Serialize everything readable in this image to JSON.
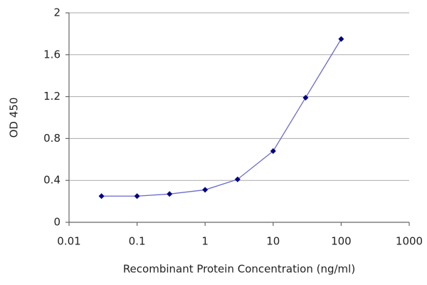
{
  "chart_data": {
    "type": "line",
    "xlabel": "Recombinant Protein Concentration (ng/ml)",
    "ylabel": "OD 450",
    "x": [
      0.03,
      0.1,
      0.3,
      1,
      3,
      10,
      30,
      100
    ],
    "series": [
      {
        "color": "#000080",
        "line_color": "#6a6ad0",
        "values": [
          0.25,
          0.25,
          0.27,
          0.31,
          0.41,
          0.68,
          1.19,
          1.75
        ]
      }
    ],
    "xscale": "log",
    "xlim": [
      0.01,
      1000
    ],
    "xticks": [
      0.01,
      0.1,
      1,
      10,
      100,
      1000
    ],
    "ylim": [
      0,
      2
    ],
    "yticks": [
      0,
      0.4,
      0.8,
      1.2,
      1.6,
      2
    ],
    "grid": true
  }
}
